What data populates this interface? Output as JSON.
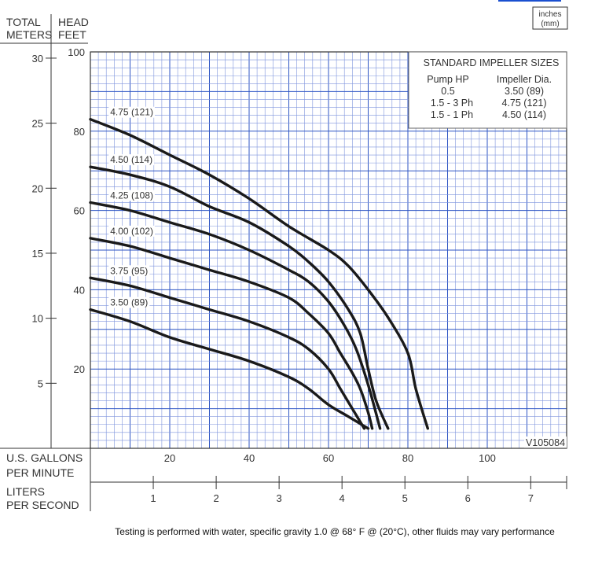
{
  "header": {
    "total": "TOTAL",
    "meters": "METERS",
    "head": "HEAD",
    "feet": "FEET",
    "units_note_1": "inches",
    "units_note_2": "(mm)"
  },
  "table": {
    "title": "STANDARD IMPELLER SIZES",
    "col1": "Pump HP",
    "col2": "Impeller Dia.",
    "rows": [
      {
        "hp": "0.5",
        "dia": "3.50 (89)"
      },
      {
        "hp": "1.5 - 3 Ph",
        "dia": "4.75 (121)"
      },
      {
        "hp": "1.5 - 1 Ph",
        "dia": "4.50 (114)"
      }
    ]
  },
  "model_code": "V105084",
  "x_label_gpm_1": "U.S. GALLONS",
  "x_label_gpm_2": "PER MINUTE",
  "x_label_lps_1": "LITERS",
  "x_label_lps_2": "PER SECOND",
  "footer": "Testing is performed with water, specific gravity 1.0 @ 68° F @ (20°C), other fluids may vary performance",
  "chart_data": {
    "type": "line",
    "xlabel": "U.S. GALLONS PER MINUTE",
    "ylabel": "TOTAL HEAD FEET",
    "xlim": [
      0,
      120
    ],
    "ylim": [
      0,
      100
    ],
    "x_ticks": [
      20,
      40,
      60,
      80,
      100
    ],
    "y_ticks_feet": [
      20,
      40,
      60,
      80,
      100
    ],
    "y_ticks_meters": [
      5,
      10,
      15,
      20,
      25,
      30
    ],
    "lps_ticks": [
      1,
      2,
      3,
      4,
      5,
      6,
      7
    ],
    "grid": true,
    "series": [
      {
        "name": "4.75 (121)",
        "x": [
          0,
          10,
          20,
          30,
          40,
          50,
          60,
          65,
          70,
          75,
          80,
          82,
          85
        ],
        "y": [
          83,
          79,
          74,
          69,
          63,
          56,
          50,
          46,
          40,
          33,
          24,
          15,
          5
        ]
      },
      {
        "name": "4.50 (114)",
        "x": [
          0,
          10,
          20,
          30,
          40,
          50,
          55,
          60,
          65,
          68,
          70,
          72,
          75
        ],
        "y": [
          71,
          69,
          66,
          61,
          57,
          51,
          47,
          42,
          35,
          29,
          20,
          12,
          5
        ]
      },
      {
        "name": "4.25 (108)",
        "x": [
          0,
          10,
          20,
          30,
          40,
          50,
          55,
          60,
          64,
          67,
          70,
          73
        ],
        "y": [
          62,
          60,
          57,
          54,
          50,
          45,
          42,
          37,
          31,
          25,
          16,
          5
        ]
      },
      {
        "name": "4.00 (102)",
        "x": [
          0,
          10,
          20,
          30,
          40,
          50,
          55,
          60,
          63,
          66,
          68,
          70,
          71
        ],
        "y": [
          53,
          51,
          48,
          45,
          42,
          38,
          34,
          29,
          24,
          19,
          15,
          9,
          5
        ]
      },
      {
        "name": "3.75 (95)",
        "x": [
          0,
          10,
          20,
          30,
          40,
          50,
          55,
          60,
          63,
          66,
          69
        ],
        "y": [
          43,
          41,
          38,
          35,
          32,
          28,
          25,
          20,
          15,
          10,
          5
        ]
      },
      {
        "name": "3.50 (89)",
        "x": [
          0,
          10,
          20,
          30,
          40,
          50,
          55,
          60,
          65,
          70
        ],
        "y": [
          35,
          32,
          28,
          25,
          22,
          18,
          15,
          11,
          8,
          5
        ]
      }
    ]
  }
}
